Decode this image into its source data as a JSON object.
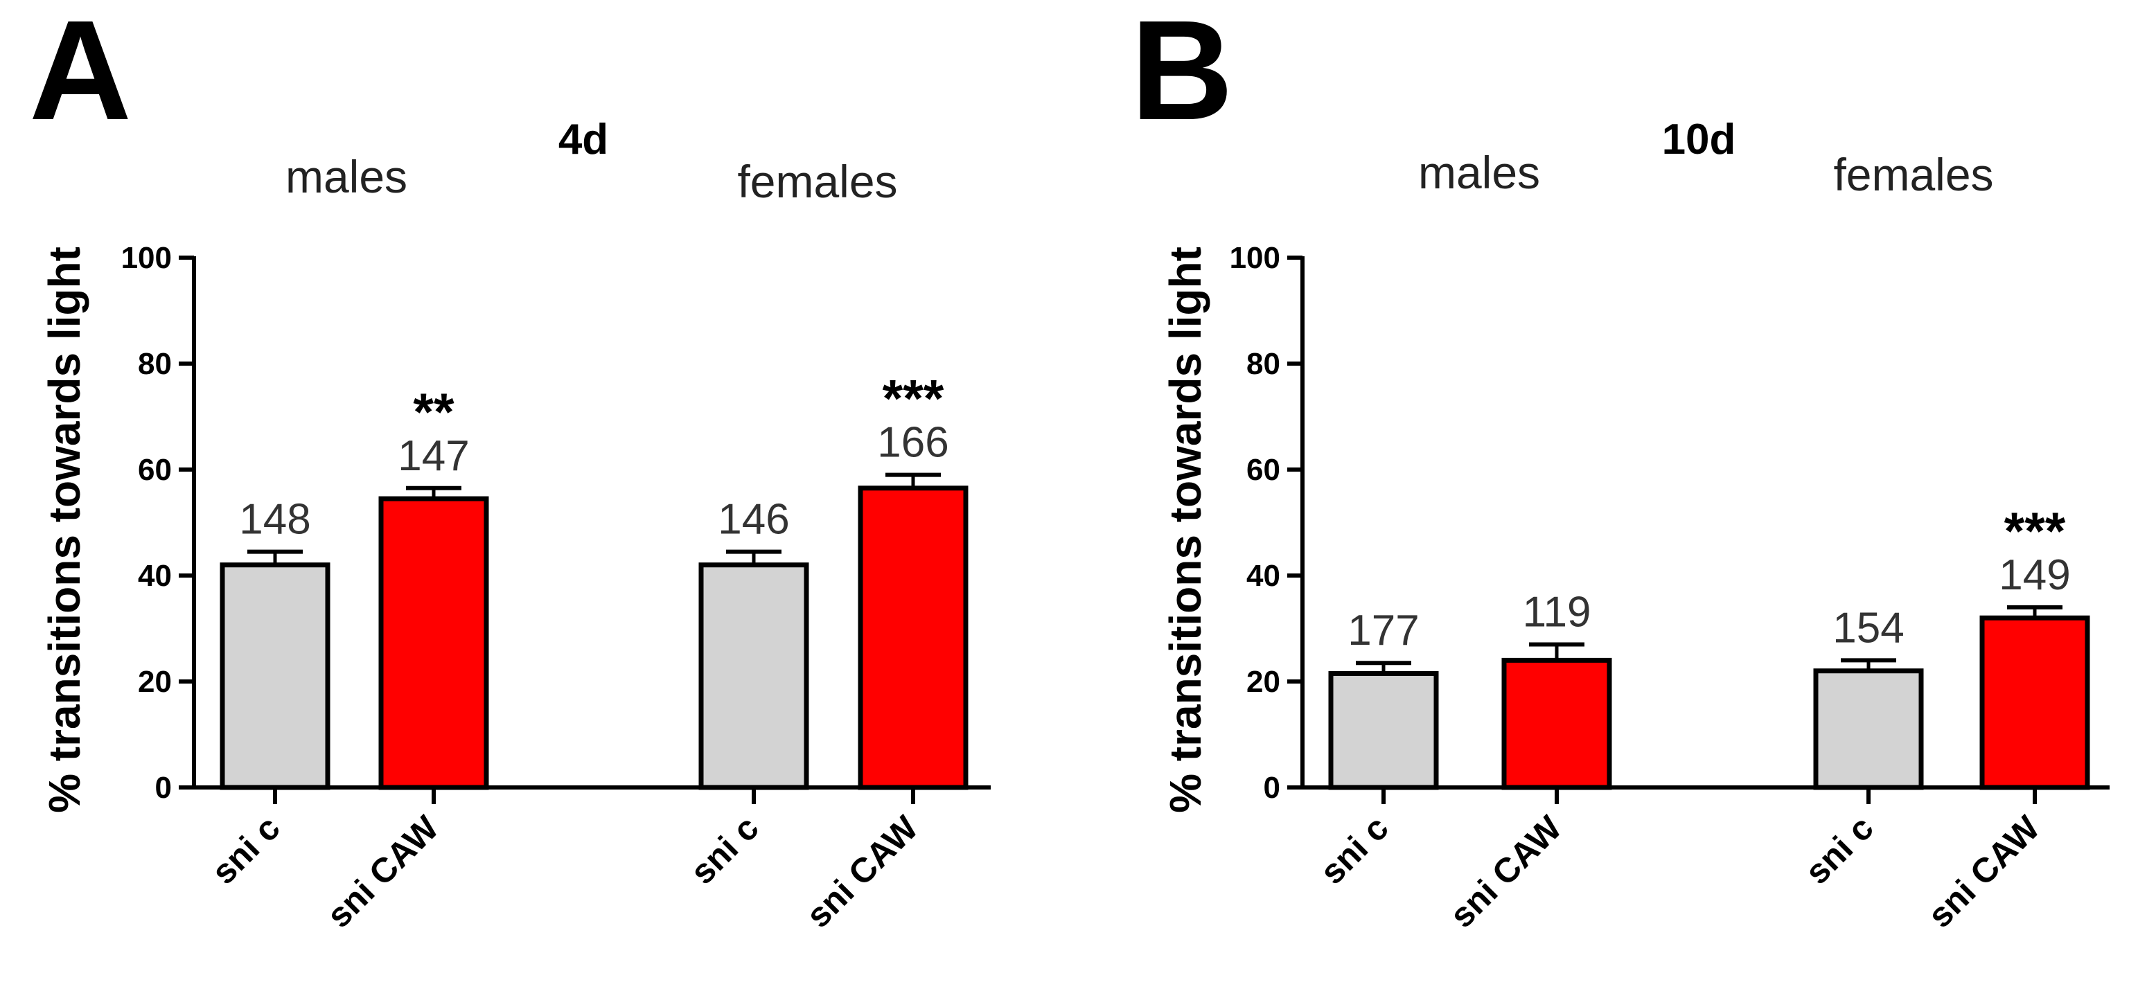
{
  "figure": {
    "panels": [
      {
        "letter": "A",
        "title": "4d"
      },
      {
        "letter": "B",
        "title": "10d"
      }
    ]
  },
  "colors": {
    "control": "#d3d3d3",
    "caw": "#ff0000",
    "outline": "#000000"
  },
  "chart_data": [
    {
      "type": "bar",
      "panel": "A",
      "title": "4d",
      "ylabel": "% transitions towards light",
      "xlabel": "",
      "ylim": [
        0,
        100
      ],
      "yticks": [
        0,
        20,
        40,
        60,
        80,
        100
      ],
      "groups": [
        "males",
        "females"
      ],
      "categories": [
        "sni c",
        "sni CAW",
        "sni c",
        "sni CAW"
      ],
      "group_index": [
        0,
        0,
        1,
        1
      ],
      "values": [
        42,
        54.5,
        42,
        56.5
      ],
      "errors": [
        2.5,
        2,
        2.5,
        2.5
      ],
      "n_labels": [
        "148",
        "147",
        "146",
        "166"
      ],
      "significance": [
        "",
        "**",
        "",
        "***"
      ],
      "color_keys": [
        "control",
        "caw",
        "control",
        "caw"
      ]
    },
    {
      "type": "bar",
      "panel": "B",
      "title": "10d",
      "ylabel": "% transitions towards light",
      "xlabel": "",
      "ylim": [
        0,
        100
      ],
      "yticks": [
        0,
        20,
        40,
        60,
        80,
        100
      ],
      "groups": [
        "males",
        "females"
      ],
      "categories": [
        "sni c",
        "sni CAW",
        "sni c",
        "sni CAW"
      ],
      "group_index": [
        0,
        0,
        1,
        1
      ],
      "values": [
        21.5,
        24,
        22,
        32
      ],
      "errors": [
        2,
        3,
        2,
        2
      ],
      "n_labels": [
        "177",
        "119",
        "154",
        "149"
      ],
      "significance": [
        "",
        "",
        "",
        "***"
      ],
      "color_keys": [
        "control",
        "caw",
        "control",
        "caw"
      ]
    }
  ]
}
